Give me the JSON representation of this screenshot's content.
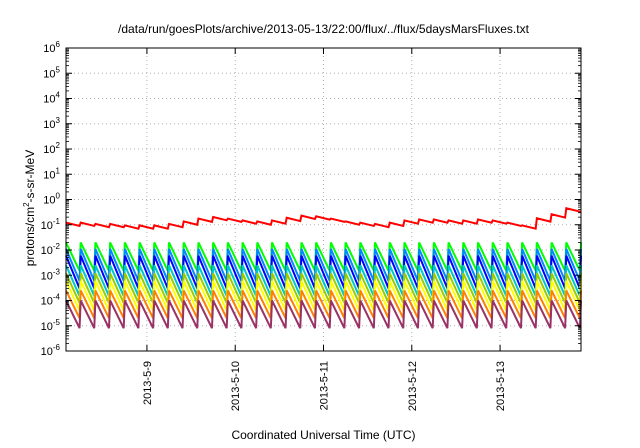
{
  "chart_data": {
    "type": "line",
    "title": "/data/run/goesPlots/archive/2013-05-13/22:00/flux/../flux/5daysMarsFluxes.txt",
    "xlabel": "Coordinated Universal Time (UTC)",
    "ylabel": {
      "prefix": "protons/cm",
      "sup": "2",
      "suffix": "-s-sr-MeV"
    },
    "yscale": "log",
    "ylim_exp": [
      -6,
      6
    ],
    "ytick_exponents": [
      -6,
      -5,
      -4,
      -3,
      -2,
      -1,
      0,
      1,
      2,
      3,
      4,
      5,
      6
    ],
    "ytick_base": "10",
    "xlim": [
      "2013-05-08 02:00",
      "2013-05-13 22:00"
    ],
    "xticks": [
      {
        "date": "2013-05-09 00:00",
        "label": "2013-5-9"
      },
      {
        "date": "2013-05-10 00:00",
        "label": "2013-5-10"
      },
      {
        "date": "2013-05-11 00:00",
        "label": "2013-5-11"
      },
      {
        "date": "2013-05-12 00:00",
        "label": "2013-5-12"
      },
      {
        "date": "2013-05-13 00:00",
        "label": "2013-5-13"
      }
    ],
    "grid": true,
    "legend": "none",
    "sawtooth_period_hours": 4,
    "series": [
      {
        "color": "#ff0000",
        "style": "sawtooth",
        "low": [
          0.09,
          0.09,
          0.08,
          0.08,
          0.07,
          0.07,
          0.07,
          0.08,
          0.1,
          0.13,
          0.15,
          0.13,
          0.11,
          0.1,
          0.11,
          0.14,
          0.17,
          0.16,
          0.13,
          0.1,
          0.09,
          0.08,
          0.09,
          0.11,
          0.12,
          0.12,
          0.11,
          0.11,
          0.12,
          0.11,
          0.09,
          0.07,
          0.06,
          0.05,
          0.05,
          0.05
        ],
        "high_factor": 1.35,
        "end_values": [
          0.18,
          0.26,
          0.45,
          0.32
        ]
      },
      {
        "color": "#00ff00",
        "style": "sawtooth",
        "low": 0.0015,
        "high": 0.02
      },
      {
        "color": "#0088ff",
        "style": "sawtooth",
        "low": 0.0006,
        "high": 0.011
      },
      {
        "color": "#0000ff",
        "style": "sawtooth",
        "low": 0.0003,
        "high": 0.006
      },
      {
        "color": "#00c8c8",
        "style": "sawtooth",
        "low": 0.00015,
        "high": 0.0025
      },
      {
        "color": "#99cc00",
        "style": "sawtooth",
        "low": 8e-05,
        "high": 0.0012
      },
      {
        "color": "#ffff00",
        "style": "sawtooth",
        "low": 4e-05,
        "high": 0.0006
      },
      {
        "color": "#ff7f00",
        "style": "sawtooth",
        "low": 2e-05,
        "high": 0.00025
      },
      {
        "color": "#993366",
        "style": "sawtooth",
        "low": 8e-06,
        "high": 0.0001
      }
    ]
  }
}
